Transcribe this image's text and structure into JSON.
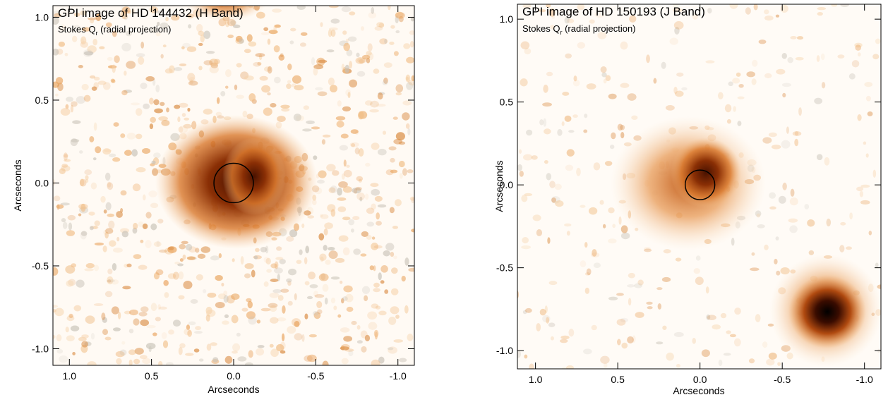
{
  "chart_data": [
    {
      "type": "image",
      "title": "GPI image of HD 144432 (H Band)",
      "subtitle": [
        "Stokes Q",
        "r",
        " (radial projection)"
      ],
      "xlabel": "Arcseconds",
      "ylabel": "Arcseconds",
      "xlim": [
        1.1,
        -1.1
      ],
      "ylim": [
        -1.1,
        1.07
      ],
      "xticks": [
        {
          "value": 1,
          "label": "1.0"
        },
        0.5,
        {
          "value": 0,
          "label": "0.0"
        },
        -0.5,
        {
          "value": -1,
          "label": "-1.0"
        }
      ],
      "yticks": [
        {
          "value": 1,
          "label": "1.0"
        },
        0.5,
        {
          "value": 0,
          "label": "0.0"
        },
        -0.5,
        {
          "value": -1,
          "label": "-1.0"
        }
      ],
      "markers": [
        {
          "x": 0,
          "y": 0,
          "radius": 0.12
        }
      ]
    },
    {
      "type": "image",
      "title": "GPI image of HD 150193 (J Band)",
      "subtitle": [
        "Stokes Q",
        "r",
        " (radial projection)"
      ],
      "xlabel": "Arcseconds",
      "ylabel": "Arcseconds",
      "xlim": [
        1.11,
        -1.1
      ],
      "ylim": [
        -1.11,
        1.09
      ],
      "xticks": [
        {
          "value": 1,
          "label": "1.0"
        },
        0.5,
        {
          "value": 0,
          "label": "0.0"
        },
        -0.5,
        {
          "value": -1,
          "label": "-1.0"
        }
      ],
      "yticks": [
        {
          "value": 1,
          "label": "1.0"
        },
        0.5,
        {
          "value": 0,
          "label": "0.0"
        },
        -0.5,
        {
          "value": -1,
          "label": "-1.0"
        }
      ],
      "markers": [
        {
          "x": 0,
          "y": 0,
          "radius": 0.09
        }
      ]
    }
  ]
}
